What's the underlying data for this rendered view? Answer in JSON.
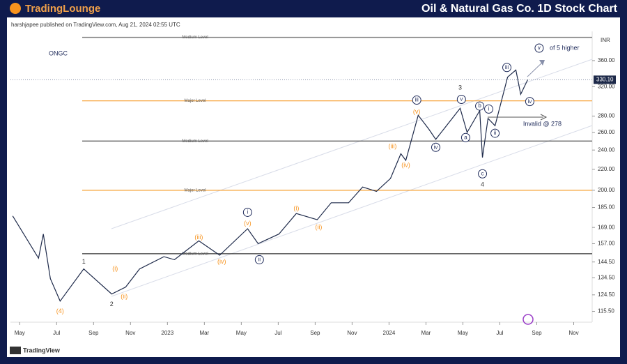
{
  "chart_data": {
    "type": "line",
    "brand": "TradingLounge",
    "title": "Oil & Natural Gas Co. 1D Stock Chart",
    "subtitle": "harshjapee published on TradingView.com, Aug 21, 2024 02:55 UTC",
    "footer": "TradingView",
    "currency": "INR",
    "log_scale": true,
    "series": [
      {
        "name": "ONGC",
        "color": "#1e2a4a",
        "x": [
          -0.38,
          1.02,
          1.28,
          1.66,
          2.19,
          3.47,
          4.98,
          5.74,
          6.49,
          7.81,
          8.38,
          9.7,
          10.83,
          12.34,
          12.91,
          14.04,
          14.98,
          16.11,
          16.87,
          17.81,
          18.57,
          19.32,
          20.08,
          20.64,
          20.91,
          21.58,
          22.15,
          22.53,
          23.85,
          24.23,
          24.91,
          25.06,
          25.36,
          25.74,
          26.42,
          26.87,
          27.13,
          27.51
        ],
        "values": [
          178,
          147,
          164,
          134,
          121,
          140,
          125,
          129,
          140,
          148,
          146,
          159,
          149,
          168,
          157,
          164,
          180,
          175,
          189,
          189,
          203,
          199,
          211,
          236,
          229,
          281,
          264,
          252,
          290,
          260,
          287,
          232,
          277,
          268,
          334,
          345,
          309,
          330.1
        ]
      }
    ],
    "last_price": {
      "value": 330.1,
      "label": "330.10"
    },
    "xlim": [
      -0.5,
      31
    ],
    "xticks": [
      {
        "value": 0,
        "label": "May"
      },
      {
        "value": 2,
        "label": "Jul"
      },
      {
        "value": 4,
        "label": "Sep"
      },
      {
        "value": 6,
        "label": "Nov"
      },
      {
        "value": 8,
        "label": "2023"
      },
      {
        "value": 10,
        "label": "Mar"
      },
      {
        "value": 12,
        "label": "May"
      },
      {
        "value": 14,
        "label": "Jul"
      },
      {
        "value": 16,
        "label": "Sep"
      },
      {
        "value": 18,
        "label": "Nov"
      },
      {
        "value": 20,
        "label": "2024"
      },
      {
        "value": 22,
        "label": "Mar"
      },
      {
        "value": 24,
        "label": "May"
      },
      {
        "value": 26,
        "label": "Jul"
      },
      {
        "value": 28,
        "label": "Sep"
      },
      {
        "value": 30,
        "label": "Nov"
      }
    ],
    "ylim": [
      110,
      411
    ],
    "yticks": [
      {
        "value": 115.5,
        "label": "115.50"
      },
      {
        "value": 124.5,
        "label": "124.50"
      },
      {
        "value": 134.5,
        "label": "134.50"
      },
      {
        "value": 144.5,
        "label": "144.50"
      },
      {
        "value": 157,
        "label": "157.00"
      },
      {
        "value": 169,
        "label": "169.00"
      },
      {
        "value": 185,
        "label": "185.00"
      },
      {
        "value": 200,
        "label": "200.00"
      },
      {
        "value": 220,
        "label": "220.00"
      },
      {
        "value": 240,
        "label": "240.00"
      },
      {
        "value": 260,
        "label": "260.00"
      },
      {
        "value": 280,
        "label": "280.00"
      },
      {
        "value": 320,
        "label": "320.00"
      },
      {
        "value": 360,
        "label": "360.00"
      }
    ],
    "levels": [
      {
        "value": 400,
        "label": "Medium Level",
        "color": "#7f7f7f"
      },
      {
        "value": 300,
        "label": "Major Level",
        "color": "#f7a033"
      },
      {
        "value": 250,
        "label": "Medium Level",
        "color": "#555555"
      },
      {
        "value": 200,
        "label": "Major Level",
        "color": "#f7a033"
      },
      {
        "value": 150,
        "label": "Medium Level",
        "color": "#333333"
      }
    ],
    "annotations": [
      {
        "text": "(4)",
        "x": 2.19,
        "y": 115.5,
        "color": "#f7931e",
        "circled": false
      },
      {
        "text": "1",
        "x": 3.47,
        "y": 144.5,
        "color": "#333333",
        "circled": false
      },
      {
        "text": "2",
        "x": 4.98,
        "y": 119.2,
        "color": "#333333",
        "circled": false
      },
      {
        "text": "(i)",
        "x": 5.17,
        "y": 140,
        "color": "#f7931e",
        "circled": false
      },
      {
        "text": "(ii)",
        "x": 5.66,
        "y": 123.5,
        "color": "#f7931e",
        "circled": false
      },
      {
        "text": "(iii)",
        "x": 9.7,
        "y": 161.5,
        "color": "#f7931e",
        "circled": false
      },
      {
        "text": "(iv)",
        "x": 10.94,
        "y": 144.5,
        "color": "#f7931e",
        "circled": false
      },
      {
        "text": "i",
        "x": 12.34,
        "y": 181,
        "color": "#1e2a5a",
        "circled": true
      },
      {
        "text": "(v)",
        "x": 12.34,
        "y": 172,
        "color": "#f7931e",
        "circled": false
      },
      {
        "text": "ii",
        "x": 12.98,
        "y": 146,
        "color": "#1e2a5a",
        "circled": true
      },
      {
        "text": "(i)",
        "x": 14.98,
        "y": 184,
        "color": "#f7931e",
        "circled": false
      },
      {
        "text": "(ii)",
        "x": 16.19,
        "y": 169,
        "color": "#f7931e",
        "circled": false
      },
      {
        "text": "(iii)",
        "x": 20.19,
        "y": 244,
        "color": "#f7931e",
        "circled": false
      },
      {
        "text": "(iv)",
        "x": 20.91,
        "y": 224,
        "color": "#f7931e",
        "circled": false
      },
      {
        "text": "iii",
        "x": 21.5,
        "y": 301,
        "color": "#1e2a5a",
        "circled": true
      },
      {
        "text": "(v)",
        "x": 21.5,
        "y": 285,
        "color": "#f7931e",
        "circled": false
      },
      {
        "text": "iv",
        "x": 22.53,
        "y": 243,
        "color": "#1e2a5a",
        "circled": true
      },
      {
        "text": "3",
        "x": 23.85,
        "y": 318,
        "color": "#333333",
        "circled": false
      },
      {
        "text": "v",
        "x": 23.92,
        "y": 302,
        "color": "#1e2a5a",
        "circled": true
      },
      {
        "text": "a",
        "x": 24.15,
        "y": 254,
        "color": "#1e2a5a",
        "circled": true
      },
      {
        "text": "b",
        "x": 24.91,
        "y": 293,
        "color": "#1e2a5a",
        "circled": true
      },
      {
        "text": "i",
        "x": 25.4,
        "y": 289,
        "color": "#1e2a5a",
        "circled": true
      },
      {
        "text": "ii",
        "x": 25.74,
        "y": 259,
        "color": "#1e2a5a",
        "circled": true
      },
      {
        "text": "c",
        "x": 25.06,
        "y": 215.5,
        "color": "#1e2a5a",
        "circled": true
      },
      {
        "text": "4",
        "x": 25.06,
        "y": 205,
        "color": "#333333",
        "circled": false
      },
      {
        "text": "iii",
        "x": 26.38,
        "y": 349,
        "color": "#1e2a5a",
        "circled": true
      },
      {
        "text": "iv",
        "x": 27.62,
        "y": 299,
        "color": "#1e2a5a",
        "circled": true
      },
      {
        "text": "v",
        "x": 28.13,
        "y": 381,
        "color": "#1e2a5a",
        "circled": true
      },
      {
        "text": "of 5 higher",
        "x": 29.5,
        "y": 381,
        "color": "#1e2a5a",
        "circled": false
      },
      {
        "text": "Invalid @ 278",
        "x": 28.3,
        "y": 270,
        "color": "#1e2a5a",
        "circled": false
      }
    ]
  }
}
